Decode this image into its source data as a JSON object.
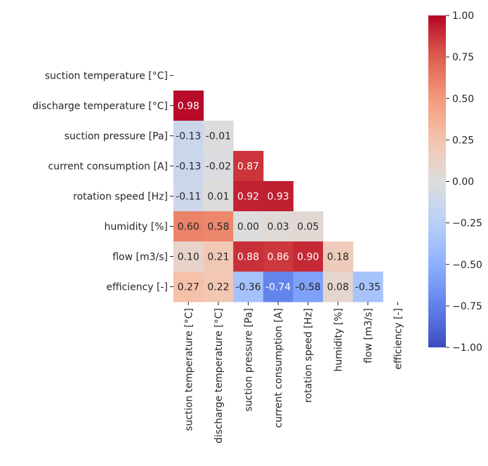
{
  "chart_data": {
    "type": "heatmap",
    "title": "",
    "variables": [
      "suction temperature [°C]",
      "discharge temperature [°C]",
      "suction pressure [Pa]",
      "current consumption [A]",
      "rotation speed [Hz]",
      "humidity [%]",
      "flow [m3/s]",
      "efficiency [-]"
    ],
    "mask": "upper-triangle-including-diagonal",
    "matrix": [
      [
        null,
        null,
        null,
        null,
        null,
        null,
        null,
        null
      ],
      [
        0.98,
        null,
        null,
        null,
        null,
        null,
        null,
        null
      ],
      [
        -0.13,
        -0.01,
        null,
        null,
        null,
        null,
        null,
        null
      ],
      [
        -0.13,
        -0.02,
        0.87,
        null,
        null,
        null,
        null,
        null
      ],
      [
        -0.11,
        0.01,
        0.92,
        0.93,
        null,
        null,
        null,
        null
      ],
      [
        0.6,
        0.58,
        0.0,
        0.03,
        0.05,
        null,
        null,
        null
      ],
      [
        0.1,
        0.21,
        0.88,
        0.86,
        0.9,
        0.18,
        null,
        null
      ],
      [
        0.27,
        0.22,
        -0.36,
        -0.74,
        -0.58,
        0.08,
        -0.35,
        null
      ]
    ],
    "value_format": "0.00",
    "colormap": "coolwarm",
    "vmin": -1.0,
    "vmax": 1.0,
    "colorbar": {
      "ticks": [
        1.0,
        0.75,
        0.5,
        0.25,
        0.0,
        -0.25,
        -0.5,
        -0.75,
        -1.0
      ],
      "tick_labels": [
        "1.00",
        "0.75",
        "0.50",
        "0.25",
        "0.00",
        "−0.25",
        "−0.50",
        "−0.75",
        "−1.00"
      ]
    }
  }
}
